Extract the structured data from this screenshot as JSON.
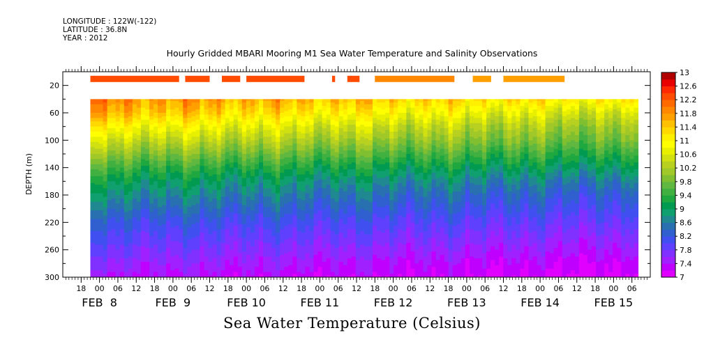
{
  "header": {
    "longitude": "LONGITUDE : 122W(-122)",
    "latitude": "LATITUDE : 36.8N",
    "year": "YEAR : 2012"
  },
  "chart_data": {
    "type": "heatmap",
    "title": "Hourly Gridded MBARI Mooring M1 Sea Water Temperature and Salinity Observations",
    "bottom_title": "Sea Water Temperature (Celsius)",
    "ylabel": "DEPTH (m)",
    "ylim": [
      300,
      0
    ],
    "y_ticks": [
      20,
      60,
      100,
      140,
      180,
      220,
      260,
      300
    ],
    "x_range_hours": [
      "2012-02-07 12:00",
      "2012-02-15 12:00"
    ],
    "x_hour_ticks": [
      "18",
      "00",
      "06",
      "12",
      "18",
      "00",
      "06",
      "12",
      "18",
      "00",
      "06",
      "12",
      "18",
      "00",
      "06",
      "12",
      "18",
      "00",
      "06",
      "12",
      "18",
      "00",
      "06",
      "12",
      "18",
      "00",
      "06",
      "12",
      "18",
      "00",
      "06"
    ],
    "x_hour_tick_times": [
      "2012-02-07 18:00",
      "2012-02-08 00:00",
      "2012-02-08 06:00",
      "2012-02-08 12:00",
      "2012-02-08 18:00",
      "2012-02-09 00:00",
      "2012-02-09 06:00",
      "2012-02-09 12:00",
      "2012-02-09 18:00",
      "2012-02-10 00:00",
      "2012-02-10 06:00",
      "2012-02-10 12:00",
      "2012-02-10 18:00",
      "2012-02-11 00:00",
      "2012-02-11 06:00",
      "2012-02-11 12:00",
      "2012-02-11 18:00",
      "2012-02-12 00:00",
      "2012-02-12 06:00",
      "2012-02-12 12:00",
      "2012-02-12 18:00",
      "2012-02-13 00:00",
      "2012-02-13 06:00",
      "2012-02-13 12:00",
      "2012-02-13 18:00",
      "2012-02-14 00:00",
      "2012-02-14 06:00",
      "2012-02-14 12:00",
      "2012-02-14 18:00",
      "2012-02-15 00:00",
      "2012-02-15 06:00"
    ],
    "x_day_labels": [
      {
        "label": "FEB  8",
        "time": "2012-02-08 00:00"
      },
      {
        "label": "FEB  9",
        "time": "2012-02-09 00:00"
      },
      {
        "label": "FEB 10",
        "time": "2012-02-10 00:00"
      },
      {
        "label": "FEB 11",
        "time": "2012-02-11 00:00"
      },
      {
        "label": "FEB 12",
        "time": "2012-02-12 00:00"
      },
      {
        "label": "FEB 13",
        "time": "2012-02-13 00:00"
      },
      {
        "label": "FEB 14",
        "time": "2012-02-14 00:00"
      },
      {
        "label": "FEB 15",
        "time": "2012-02-15 00:00"
      }
    ],
    "data_time_range": [
      "2012-02-07 21:00",
      "2012-02-15 08:00"
    ],
    "data_depth_range": [
      40,
      300
    ],
    "temperature_profile": {
      "depth": [
        40,
        60,
        80,
        100,
        120,
        140,
        160,
        180,
        200,
        220,
        240,
        260,
        280,
        300
      ],
      "early_period_celsius": [
        11.9,
        11.6,
        11.0,
        10.5,
        10.0,
        9.5,
        9.1,
        8.8,
        8.5,
        8.2,
        8.0,
        7.8,
        7.6,
        7.4
      ],
      "late_period_celsius": [
        11.0,
        10.4,
        10.0,
        9.7,
        9.3,
        8.9,
        8.5,
        8.2,
        8.0,
        7.8,
        7.6,
        7.4,
        7.2,
        7.1
      ]
    },
    "surface_band": {
      "depth": 10,
      "segments": [
        {
          "start": "2012-02-07 21:00",
          "end": "2012-02-09 02:00",
          "celsius": 12.3
        },
        {
          "start": "2012-02-09 04:00",
          "end": "2012-02-09 12:00",
          "celsius": 12.3
        },
        {
          "start": "2012-02-09 16:00",
          "end": "2012-02-09 22:00",
          "celsius": 12.3
        },
        {
          "start": "2012-02-10 00:00",
          "end": "2012-02-10 19:00",
          "celsius": 12.3
        },
        {
          "start": "2012-02-11 04:00",
          "end": "2012-02-11 05:00",
          "celsius": 12.2
        },
        {
          "start": "2012-02-11 09:00",
          "end": "2012-02-11 13:00",
          "celsius": 12.2
        },
        {
          "start": "2012-02-11 18:00",
          "end": "2012-02-12 20:00",
          "celsius": 11.9
        },
        {
          "start": "2012-02-13 02:00",
          "end": "2012-02-13 08:00",
          "celsius": 11.7
        },
        {
          "start": "2012-02-13 12:00",
          "end": "2012-02-14 08:00",
          "celsius": 11.7
        }
      ]
    },
    "colorbar": {
      "levels": [
        7,
        7.2,
        7.4,
        7.6,
        7.8,
        8,
        8.2,
        8.4,
        8.6,
        8.8,
        9,
        9.2,
        9.4,
        9.6,
        9.8,
        10,
        10.2,
        10.4,
        10.6,
        10.8,
        11,
        11.2,
        11.4,
        11.6,
        11.8,
        12,
        12.2,
        12.4,
        12.6,
        12.8,
        13
      ],
      "labels": [
        "7",
        "7.4",
        "7.8",
        "8.2",
        "8.6",
        "9",
        "9.4",
        "9.8",
        "10.2",
        "10.6",
        "11",
        "11.4",
        "11.8",
        "12.2",
        "12.6",
        "13"
      ],
      "colors": [
        "#e000ff",
        "#c000ff",
        "#a020ff",
        "#8030ff",
        "#6040ff",
        "#4050f0",
        "#3060d0",
        "#2870b0",
        "#208890",
        "#10a070",
        "#009a50",
        "#20a840",
        "#40b040",
        "#60b840",
        "#80c030",
        "#a0c828",
        "#b8d020",
        "#d0e010",
        "#e8f000",
        "#ffff00",
        "#fff000",
        "#ffd800",
        "#ffc000",
        "#ffa000",
        "#ff8800",
        "#ff6a00",
        "#ff4c00",
        "#ff2800",
        "#e80000",
        "#b00000"
      ]
    }
  }
}
